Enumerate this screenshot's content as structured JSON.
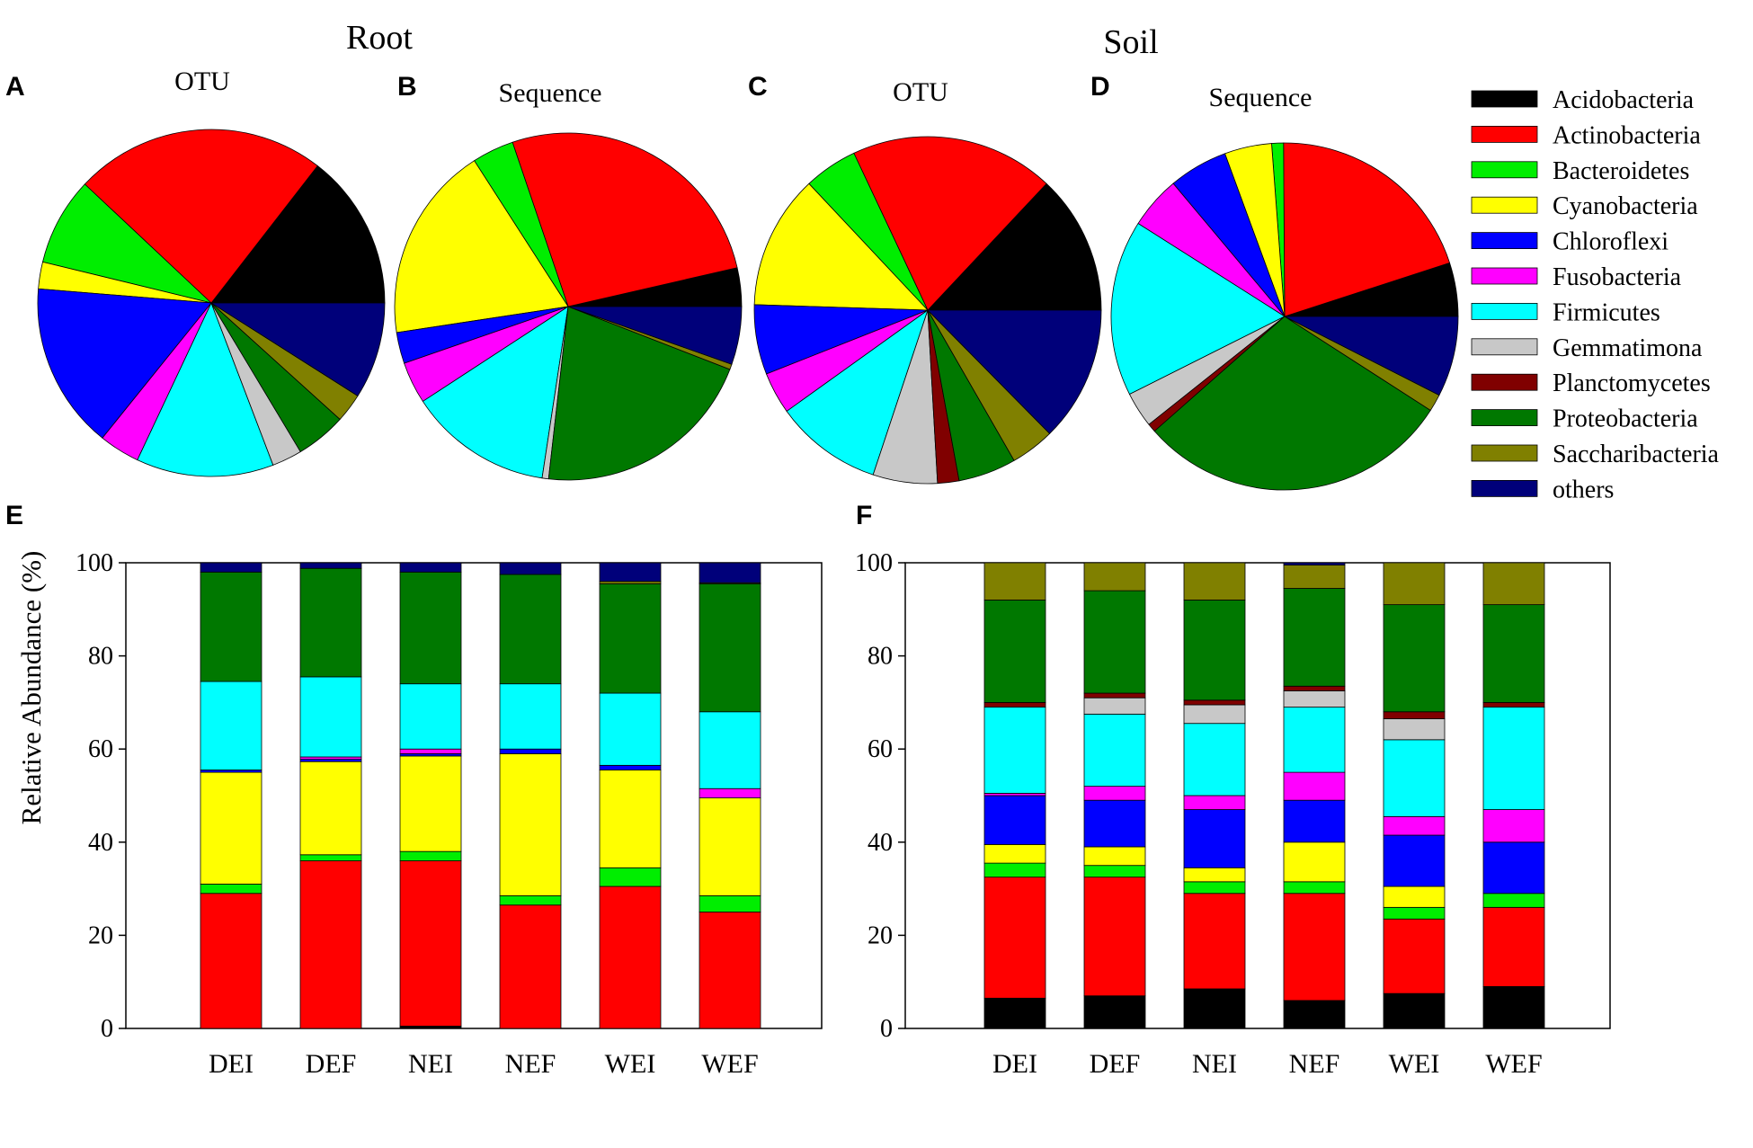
{
  "figure": {
    "titles": {
      "root": "Root",
      "soil": "Soil"
    },
    "panel_letters": [
      "A",
      "B",
      "C",
      "D",
      "E",
      "F"
    ]
  },
  "legend": {
    "phyla": [
      "Acidobacteria",
      "Actinobacteria",
      "Bacteroidetes",
      "Cyanobacteria",
      "Chloroflexi",
      "Fusobacteria",
      "Firmicutes",
      "Gemmatimona",
      "Planctomycetes",
      "Proteobacteria",
      "Saccharibacteria",
      "others"
    ],
    "colors": [
      "#000000",
      "#ff0000",
      "#00ee00",
      "#ffff00",
      "#0000ff",
      "#ff00ff",
      "#00ffff",
      "#c8c8c8",
      "#800000",
      "#007800",
      "#808000",
      "#00007a"
    ]
  },
  "chart_data": [
    {
      "type": "pie",
      "panel": "A",
      "title": "OTU",
      "group": "Root",
      "labels": [
        "Acidobacteria",
        "Actinobacteria",
        "Bacteroidetes",
        "Cyanobacteria",
        "Chloroflexi",
        "Fusobacteria",
        "Firmicutes",
        "Gemmatimona",
        "Planctomycetes",
        "Proteobacteria",
        "Saccharibacteria",
        "others"
      ],
      "values": [
        14.5,
        23.5,
        8.2,
        2.5,
        15.5,
        3.8,
        12.8,
        2.8,
        0,
        4.7,
        2.7,
        9.0
      ]
    },
    {
      "type": "pie",
      "panel": "B",
      "title": "Sequence",
      "group": "Root",
      "labels": [
        "Acidobacteria",
        "Actinobacteria",
        "Bacteroidetes",
        "Cyanobacteria",
        "Chloroflexi",
        "Fusobacteria",
        "Firmicutes",
        "Gemmatimona",
        "Planctomycetes",
        "Proteobacteria",
        "Saccharibacteria",
        "others"
      ],
      "values": [
        3.6,
        26.6,
        3.9,
        18.3,
        2.9,
        3.9,
        13.4,
        0.6,
        0,
        20.9,
        0.5,
        5.4
      ]
    },
    {
      "type": "pie",
      "panel": "C",
      "title": "OTU",
      "group": "Soil",
      "labels": [
        "Acidobacteria",
        "Actinobacteria",
        "Bacteroidetes",
        "Cyanobacteria",
        "Chloroflexi",
        "Fusobacteria",
        "Firmicutes",
        "Gemmatimona",
        "Planctomycetes",
        "Proteobacteria",
        "Saccharibacteria",
        "others"
      ],
      "values": [
        13.0,
        19.0,
        5.0,
        12.5,
        6.5,
        3.9,
        10.0,
        6.0,
        2.0,
        5.4,
        4.1,
        12.6
      ]
    },
    {
      "type": "pie",
      "panel": "D",
      "title": "Sequence",
      "group": "Soil",
      "labels": [
        "Acidobacteria",
        "Actinobacteria",
        "Bacteroidetes",
        "Cyanobacteria",
        "Chloroflexi",
        "Fusobacteria",
        "Firmicutes",
        "Gemmatimona",
        "Planctomycetes",
        "Proteobacteria",
        "Saccharibacteria",
        "others"
      ],
      "values": [
        5.0,
        20.1,
        1.1,
        4.4,
        5.5,
        4.9,
        16.4,
        3.3,
        0.8,
        29.4,
        1.6,
        7.5
      ]
    },
    {
      "type": "bar",
      "stacked": true,
      "panel": "E",
      "group": "Root",
      "categories": [
        "DEI",
        "DEF",
        "NEI",
        "NEF",
        "WEI",
        "WEF"
      ],
      "ylabel": "Relative Abundance (%)",
      "ylim": [
        0,
        100
      ],
      "yticks": [
        "0",
        "20",
        "40",
        "60",
        "80",
        "100"
      ],
      "series": [
        {
          "name": "Acidobacteria",
          "values": [
            0,
            0,
            0.5,
            0,
            0,
            0
          ]
        },
        {
          "name": "Actinobacteria",
          "values": [
            29,
            36,
            35.5,
            26.5,
            30.5,
            25
          ]
        },
        {
          "name": "Bacteroidetes",
          "values": [
            2,
            1.3,
            2,
            2,
            4,
            3.5
          ]
        },
        {
          "name": "Cyanobacteria",
          "values": [
            24,
            20,
            20.5,
            30.5,
            21,
            21
          ]
        },
        {
          "name": "Chloroflexi",
          "values": [
            0.5,
            0.5,
            0.5,
            1,
            1,
            0
          ]
        },
        {
          "name": "Fusobacteria",
          "values": [
            0,
            0.5,
            1,
            0,
            0,
            2
          ]
        },
        {
          "name": "Firmicutes",
          "values": [
            19,
            17.2,
            14,
            14,
            15.5,
            16.5
          ]
        },
        {
          "name": "Gemmatimona",
          "values": [
            0,
            0,
            0,
            0,
            0,
            0
          ]
        },
        {
          "name": "Planctomycetes",
          "values": [
            0,
            0,
            0,
            0,
            0,
            0
          ]
        },
        {
          "name": "Proteobacteria",
          "values": [
            23.5,
            23.3,
            24,
            23.5,
            23.5,
            27.5
          ]
        },
        {
          "name": "Saccharibacteria",
          "values": [
            0,
            0,
            0,
            0,
            0.5,
            0.2
          ]
        },
        {
          "name": "others",
          "values": [
            2,
            1.2,
            2,
            2.5,
            4,
            4.3
          ]
        }
      ]
    },
    {
      "type": "bar",
      "stacked": true,
      "panel": "F",
      "group": "Soil",
      "categories": [
        "DEI",
        "DEF",
        "NEI",
        "NEF",
        "WEI",
        "WEF"
      ],
      "ylabel": "",
      "ylim": [
        0,
        100
      ],
      "yticks": [
        "0",
        "20",
        "40",
        "60",
        "80",
        "100"
      ],
      "series": [
        {
          "name": "Acidobacteria",
          "values": [
            6.5,
            7,
            8.5,
            6,
            7.5,
            9
          ]
        },
        {
          "name": "Actinobacteria",
          "values": [
            26,
            25.5,
            20.5,
            23,
            16,
            17
          ]
        },
        {
          "name": "Bacteroidetes",
          "values": [
            3,
            2.5,
            2.5,
            2.5,
            2.5,
            3
          ]
        },
        {
          "name": "Cyanobacteria",
          "values": [
            4,
            4,
            3,
            8.5,
            4.5,
            0
          ]
        },
        {
          "name": "Chloroflexi",
          "values": [
            10.5,
            10,
            12.5,
            9,
            11,
            11
          ]
        },
        {
          "name": "Fusobacteria",
          "values": [
            0.5,
            3,
            3,
            6,
            4,
            7
          ]
        },
        {
          "name": "Firmicutes",
          "values": [
            18.5,
            15.5,
            15.5,
            14,
            16.5,
            22
          ]
        },
        {
          "name": "Gemmatimona",
          "values": [
            0,
            3.5,
            4,
            3.5,
            4.5,
            0
          ]
        },
        {
          "name": "Planctomycetes",
          "values": [
            1,
            1,
            1,
            1,
            1.5,
            1
          ]
        },
        {
          "name": "Proteobacteria",
          "values": [
            22,
            22,
            21.5,
            21,
            23,
            21
          ]
        },
        {
          "name": "Saccharibacteria",
          "values": [
            8,
            6,
            8,
            5,
            9,
            9
          ]
        },
        {
          "name": "others",
          "values": [
            0,
            0,
            0,
            0.5,
            0,
            0
          ]
        }
      ]
    }
  ]
}
